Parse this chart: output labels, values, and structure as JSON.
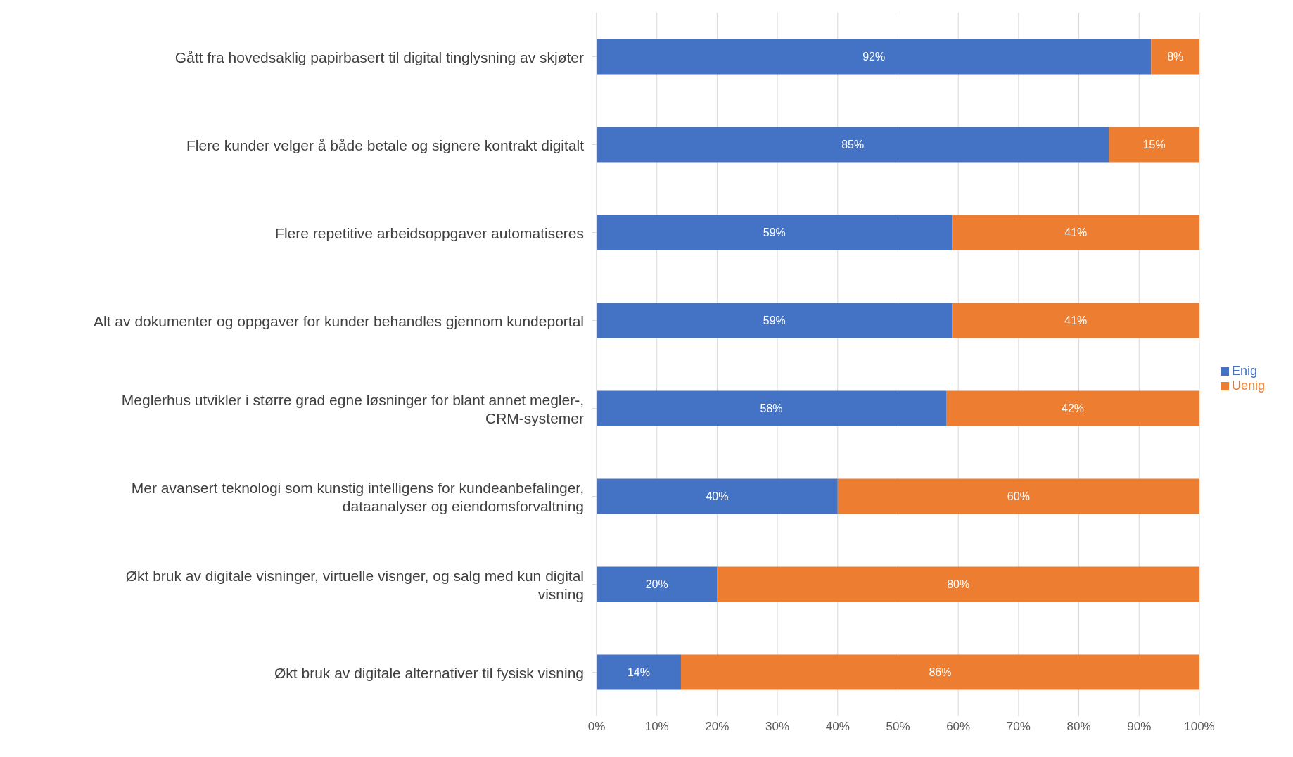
{
  "chart_data": {
    "type": "bar",
    "orientation": "horizontal",
    "stacked": true,
    "categories": [
      "Gått fra hovedsaklig papirbasert til digital tinglysning av skjøter",
      "Flere kunder velger å både betale og signere kontrakt digitalt",
      "Flere repetitive arbeidsoppgaver automatiseres",
      "Alt av dokumenter og oppgaver for kunder behandles gjennom kundeportal",
      "Meglerhus utvikler i større grad egne løsninger for blant annet megler-, CRM-systemer",
      "Mer avansert teknologi som kunstig intelligens for kundeanbefalinger, dataanalyser og eiendomsforvaltning",
      "Økt bruk av digitale visninger, virtuelle visnger, og salg med kun digital visning",
      "Økt bruk av digitale alternativer til fysisk visning"
    ],
    "series": [
      {
        "name": "Enig",
        "color": "#4472c4",
        "values": [
          92,
          85,
          59,
          59,
          58,
          40,
          20,
          14
        ],
        "value_labels": [
          "92%",
          "85%",
          "59%",
          "59%",
          "58%",
          "40%",
          "20%",
          "14%"
        ]
      },
      {
        "name": "Uenig",
        "color": "#ed7d31",
        "values": [
          8,
          15,
          41,
          41,
          42,
          60,
          80,
          86
        ],
        "value_labels": [
          "8%",
          "15%",
          "41%",
          "41%",
          "42%",
          "60%",
          "80%",
          "86%"
        ]
      }
    ],
    "xlim": [
      0,
      100
    ],
    "xticks": [
      {
        "value": 0,
        "label": "0%"
      },
      {
        "value": 10,
        "label": "10%"
      },
      {
        "value": 20,
        "label": "20%"
      },
      {
        "value": 30,
        "label": "30%"
      },
      {
        "value": 40,
        "label": "40%"
      },
      {
        "value": 50,
        "label": "50%"
      },
      {
        "value": 60,
        "label": "60%"
      },
      {
        "value": 70,
        "label": "70%"
      },
      {
        "value": 80,
        "label": "80%"
      },
      {
        "value": 90,
        "label": "90%"
      },
      {
        "value": 100,
        "label": "100%"
      }
    ],
    "grid": "x",
    "legend": "right"
  }
}
